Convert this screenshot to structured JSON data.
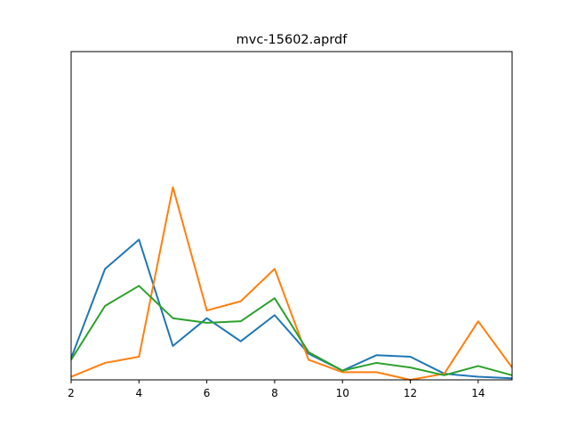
{
  "chart_data": {
    "type": "line",
    "title": "mvc-15602.aprdf",
    "xlabel": "",
    "ylabel": "",
    "xlim": [
      2,
      15
    ],
    "ylim": [
      -0.04,
      2.09
    ],
    "grid": false,
    "legend": "none",
    "x_ticks": [
      2,
      4,
      6,
      8,
      10,
      12,
      14
    ],
    "x": [
      2,
      3,
      4,
      5,
      6,
      7,
      8,
      9,
      10,
      11,
      12,
      13,
      14,
      15
    ],
    "series": [
      {
        "color": "#1f77b4",
        "values": [
          0.1,
          0.68,
          0.87,
          0.18,
          0.36,
          0.21,
          0.38,
          0.13,
          0.02,
          0.12,
          0.11,
          0.0,
          -0.02,
          -0.03
        ]
      },
      {
        "color": "#ff7f0e",
        "values": [
          -0.02,
          0.07,
          0.11,
          1.21,
          0.41,
          0.47,
          0.68,
          0.09,
          0.01,
          0.01,
          -0.04,
          0.0,
          0.34,
          0.04
        ]
      },
      {
        "color": "#2ca02c",
        "values": [
          0.09,
          0.44,
          0.57,
          0.36,
          0.33,
          0.34,
          0.49,
          0.14,
          0.02,
          0.07,
          0.04,
          -0.01,
          0.05,
          -0.01
        ]
      }
    ]
  }
}
